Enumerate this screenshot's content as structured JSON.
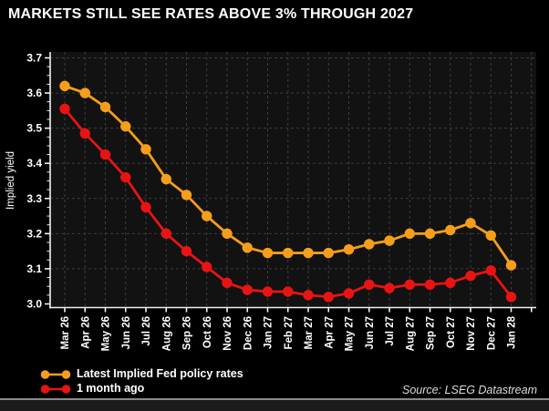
{
  "title": "MARKETS STILL SEE RATES ABOVE 3% THROUGH 2027",
  "source": "Source: LSEG Datastream",
  "colors": {
    "background": "#000000",
    "plot_background": "#121212",
    "grid": "#3d3d3d",
    "axis": "#f2f2f2",
    "text": "#ffffff",
    "orange": "#F59E1B",
    "red": "#E81414"
  },
  "chart_data": {
    "type": "line",
    "title": "MARKETS STILL SEE RATES ABOVE 3% THROUGH 2027",
    "xlabel": "",
    "ylabel": "Implied yield",
    "ylim": [
      3.0,
      3.7
    ],
    "yticks": [
      3.0,
      3.1,
      3.2,
      3.3,
      3.4,
      3.5,
      3.6,
      3.7
    ],
    "ytick_labels": [
      "3.0",
      "3.1",
      "3.2",
      "3.3",
      "3.4",
      "3.5",
      "3.6",
      "3.7"
    ],
    "minor_ytick_step": 0.025,
    "grid": true,
    "grid_style": "dashed",
    "legend_position": "bottom-left",
    "categories": [
      "Mar 26",
      "Apr 26",
      "May 26",
      "Jun 26",
      "Jul 26",
      "Aug 26",
      "Sep 26",
      "Oct 26",
      "Nov 26",
      "Dec 26",
      "Jan 27",
      "Feb 27",
      "Mar 27",
      "Apr 27",
      "May 27",
      "Jun 27",
      "Jul 27",
      "Aug 27",
      "Sep 27",
      "Oct 27",
      "Nov 27",
      "Dec 27",
      "Jan 28"
    ],
    "series": [
      {
        "name": "Latest Implied Fed policy rates",
        "color": "#F59E1B",
        "marker": "circle",
        "values": [
          3.62,
          3.6,
          3.56,
          3.505,
          3.44,
          3.355,
          3.31,
          3.25,
          3.2,
          3.16,
          3.145,
          3.145,
          3.145,
          3.145,
          3.155,
          3.17,
          3.18,
          3.2,
          3.2,
          3.21,
          3.23,
          3.195,
          3.11
        ]
      },
      {
        "name": "1 month ago",
        "color": "#E81414",
        "marker": "circle",
        "values": [
          3.555,
          3.485,
          3.425,
          3.36,
          3.275,
          3.2,
          3.15,
          3.105,
          3.06,
          3.04,
          3.035,
          3.035,
          3.025,
          3.02,
          3.03,
          3.055,
          3.045,
          3.055,
          3.055,
          3.06,
          3.08,
          3.095,
          3.02
        ]
      }
    ]
  }
}
